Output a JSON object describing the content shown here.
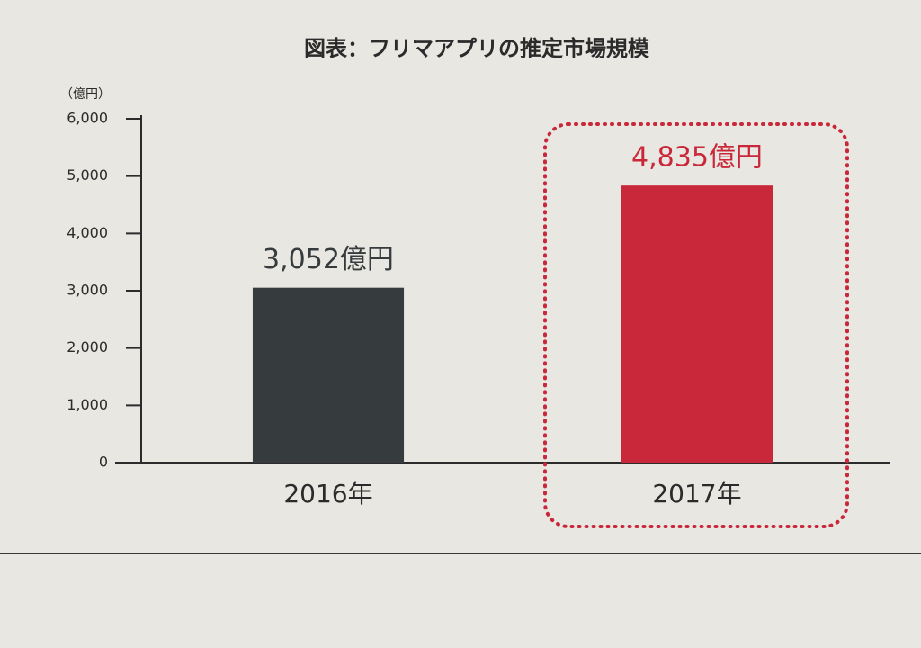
{
  "chart_data": {
    "type": "bar",
    "title": "図表：フリマアプリの推定市場規模",
    "y_unit": "（億円）",
    "categories": [
      "2016年",
      "2017年"
    ],
    "values": [
      3052,
      4835
    ],
    "value_labels": [
      "3,052億円",
      "4,835億円"
    ],
    "colors": [
      "#363b3d",
      "#c9283a"
    ],
    "ylim": [
      0,
      6000
    ],
    "yticks": [
      0,
      {
        "value": 1000,
        "label": "1,000"
      },
      {
        "value": 2000,
        "label": "2,000"
      },
      {
        "value": 3000,
        "label": "3,000"
      },
      {
        "value": 4000,
        "label": "4,000"
      },
      {
        "value": 5000,
        "label": "5,000"
      },
      {
        "value": 6000,
        "label": "6,000"
      }
    ],
    "grid": false
  }
}
